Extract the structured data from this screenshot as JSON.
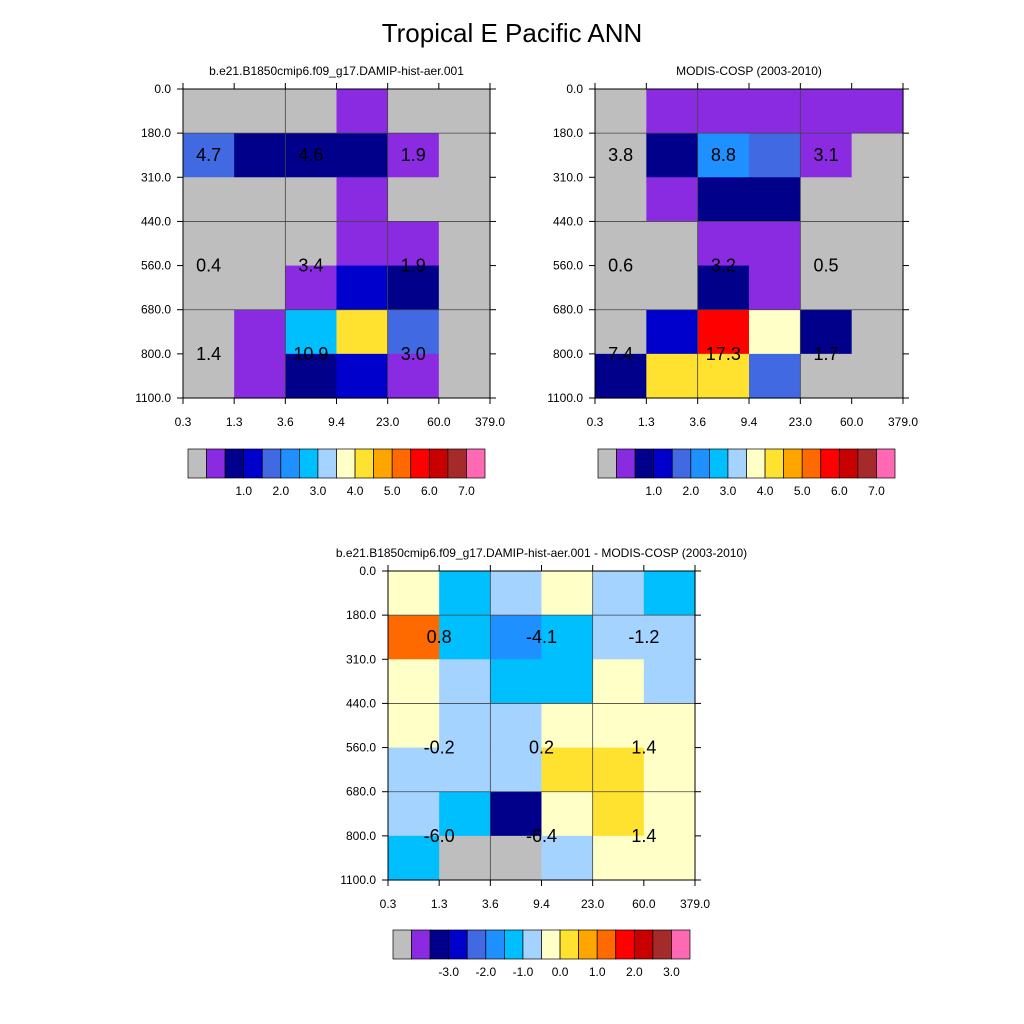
{
  "figure": {
    "title": "Tropical E Pacific ANN"
  },
  "colors": {
    "missing": "#bebebe",
    "scale": [
      "#8a2be2",
      "#00008b",
      "#0000cd",
      "#4169e1",
      "#1e90ff",
      "#00bfff",
      "#a4d3ff",
      "#ffffc8",
      "#ffe130",
      "#ffa500",
      "#ff6a00",
      "#ff0000",
      "#c80000",
      "#a52a2a",
      "#ff69b4"
    ]
  },
  "chart_data": [
    {
      "type": "heatmap",
      "title": "b.e21.B1850cmip6.f09_g17.DAMIP-hist-aer.001",
      "x_ticks": [
        "0.3",
        "1.3",
        "3.6",
        "9.4",
        "23.0",
        "60.0",
        "379.0"
      ],
      "y_ticks": [
        "0.0",
        "180.0",
        "310.0",
        "440.0",
        "560.0",
        "680.0",
        "800.0",
        "1100.0"
      ],
      "cell_colors": [
        [
          -1,
          -1,
          -1,
          0,
          -1,
          -1
        ],
        [
          3,
          1,
          1,
          1,
          0,
          -1
        ],
        [
          -1,
          -1,
          -1,
          0,
          -1,
          -1
        ],
        [
          -1,
          -1,
          -1,
          0,
          0,
          -1
        ],
        [
          -1,
          -1,
          0,
          2,
          1,
          -1
        ],
        [
          -1,
          0,
          5,
          8,
          3,
          -1
        ],
        [
          -1,
          0,
          1,
          2,
          0,
          -1
        ]
      ],
      "summary_labels": [
        {
          "text": "4.7",
          "col": 0.5,
          "row": 1.5
        },
        {
          "text": "4.6",
          "col": 2.5,
          "row": 1.5
        },
        {
          "text": "1.9",
          "col": 4.5,
          "row": 1.5
        },
        {
          "text": "0.4",
          "col": 0.5,
          "row": 4.0
        },
        {
          "text": "3.4",
          "col": 2.5,
          "row": 4.0
        },
        {
          "text": "1.9",
          "col": 4.5,
          "row": 4.0
        },
        {
          "text": "1.4",
          "col": 0.5,
          "row": 6.0
        },
        {
          "text": "10.9",
          "col": 2.5,
          "row": 6.0
        },
        {
          "text": "3.0",
          "col": 4.5,
          "row": 6.0
        }
      ],
      "colorbar_labels": [
        "1.0",
        "2.0",
        "3.0",
        "4.0",
        "5.0",
        "6.0",
        "7.0"
      ]
    },
    {
      "type": "heatmap",
      "title": "MODIS-COSP (2003-2010)",
      "x_ticks": [
        "0.3",
        "1.3",
        "3.6",
        "9.4",
        "23.0",
        "60.0",
        "379.0"
      ],
      "y_ticks": [
        "0.0",
        "180.0",
        "310.0",
        "440.0",
        "560.0",
        "680.0",
        "800.0",
        "1100.0"
      ],
      "cell_colors": [
        [
          -1,
          0,
          0,
          0,
          0,
          0
        ],
        [
          -1,
          1,
          4,
          3,
          0,
          -1
        ],
        [
          -1,
          0,
          1,
          1,
          -1,
          -1
        ],
        [
          -1,
          -1,
          0,
          0,
          -1,
          -1
        ],
        [
          -1,
          -1,
          1,
          0,
          -1,
          -1
        ],
        [
          -1,
          2,
          11,
          7,
          1,
          -1
        ],
        [
          1,
          8,
          8,
          3,
          -1,
          -1
        ]
      ],
      "summary_labels": [
        {
          "text": "3.8",
          "col": 0.5,
          "row": 1.5
        },
        {
          "text": "8.8",
          "col": 2.5,
          "row": 1.5
        },
        {
          "text": "3.1",
          "col": 4.5,
          "row": 1.5
        },
        {
          "text": "0.6",
          "col": 0.5,
          "row": 4.0
        },
        {
          "text": "3.2",
          "col": 2.5,
          "row": 4.0
        },
        {
          "text": "0.5",
          "col": 4.5,
          "row": 4.0
        },
        {
          "text": "7.4",
          "col": 0.5,
          "row": 6.0
        },
        {
          "text": "17.3",
          "col": 2.5,
          "row": 6.0
        },
        {
          "text": "1.7",
          "col": 4.5,
          "row": 6.0
        }
      ],
      "colorbar_labels": [
        "1.0",
        "2.0",
        "3.0",
        "4.0",
        "5.0",
        "6.0",
        "7.0"
      ]
    },
    {
      "type": "heatmap",
      "title": "b.e21.B1850cmip6.f09_g17.DAMIP-hist-aer.001 - MODIS-COSP (2003-2010)",
      "x_ticks": [
        "0.3",
        "1.3",
        "3.6",
        "9.4",
        "23.0",
        "60.0",
        "379.0"
      ],
      "y_ticks": [
        "0.0",
        "180.0",
        "310.0",
        "440.0",
        "560.0",
        "680.0",
        "800.0",
        "1100.0"
      ],
      "cell_colors": [
        [
          7,
          5,
          6,
          7,
          6,
          5
        ],
        [
          10,
          5,
          4,
          5,
          6,
          6
        ],
        [
          7,
          6,
          5,
          5,
          7,
          6
        ],
        [
          7,
          6,
          6,
          7,
          7,
          7
        ],
        [
          6,
          6,
          6,
          8,
          8,
          7
        ],
        [
          6,
          5,
          1,
          7,
          8,
          7
        ],
        [
          5,
          -1,
          -1,
          6,
          7,
          7
        ]
      ],
      "summary_labels": [
        {
          "text": "0.8",
          "col": 1.0,
          "row": 1.5
        },
        {
          "text": "-4.1",
          "col": 3.0,
          "row": 1.5
        },
        {
          "text": "-1.2",
          "col": 5.0,
          "row": 1.5
        },
        {
          "text": "-0.2",
          "col": 1.0,
          "row": 4.0
        },
        {
          "text": "0.2",
          "col": 3.0,
          "row": 4.0
        },
        {
          "text": "1.4",
          "col": 5.0,
          "row": 4.0
        },
        {
          "text": "-6.0",
          "col": 1.0,
          "row": 6.0
        },
        {
          "text": "-6.4",
          "col": 3.0,
          "row": 6.0
        },
        {
          "text": "1.4",
          "col": 5.0,
          "row": 6.0
        }
      ],
      "colorbar_labels": [
        "-3.0",
        "-2.0",
        "-1.0",
        "0.0",
        "1.0",
        "2.0",
        "3.0"
      ]
    }
  ]
}
